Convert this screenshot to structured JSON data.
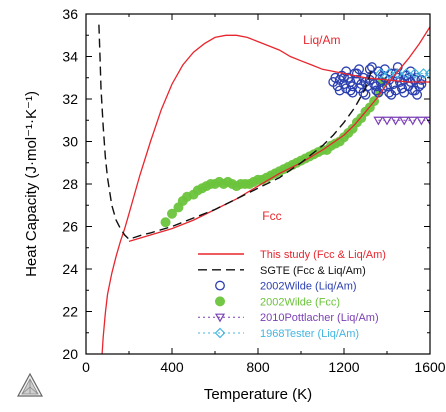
{
  "chart_data": {
    "type": "line",
    "title": "",
    "xlabel": "Temperature (K)",
    "ylabel": "Heat Capacity (J·mol⁻¹·K⁻¹)",
    "xlim": [
      0,
      1600
    ],
    "ylim": [
      20,
      36
    ],
    "xticks": [
      0,
      400,
      800,
      1200,
      1600
    ],
    "yticks": [
      20,
      22,
      24,
      26,
      28,
      30,
      32,
      34,
      36
    ],
    "grid": false,
    "legend_position": "bottom-right",
    "curve_labels": [
      {
        "text": "Liq/Am",
        "x": 1010,
        "y": 34.6,
        "color": "#e8262e"
      },
      {
        "text": "Fcc",
        "x": 820,
        "y": 26.3,
        "color": "#e8262e"
      }
    ],
    "series": [
      {
        "name": "This study (Fcc & Liq/Am)",
        "kind": "line",
        "style": "solid",
        "color": "#e8262e",
        "x": [
          75,
          80,
          90,
          100,
          120,
          140,
          160,
          180,
          200,
          250,
          300,
          350,
          400,
          450,
          500,
          550,
          600,
          650,
          700,
          750,
          800,
          850,
          900,
          950,
          1000,
          1050,
          1100,
          1150,
          1200,
          1300,
          1400,
          1500,
          1600
        ],
        "y": [
          20.0,
          20.8,
          21.9,
          22.8,
          23.8,
          24.6,
          25.3,
          25.9,
          26.6,
          28.4,
          30.0,
          31.5,
          32.7,
          33.6,
          34.2,
          34.6,
          34.9,
          35.0,
          35.0,
          34.9,
          34.7,
          34.5,
          34.3,
          34.0,
          33.8,
          33.6,
          33.4,
          33.3,
          33.2,
          33.0,
          32.9,
          32.8,
          32.8
        ]
      },
      {
        "name": "This study (Fcc & Liq/Am)",
        "kind": "line",
        "style": "solid",
        "color": "#e8262e",
        "show_in_legend": false,
        "x": [
          200,
          300,
          400,
          500,
          600,
          700,
          800,
          900,
          1000,
          1100,
          1200,
          1250,
          1300,
          1350,
          1400,
          1450,
          1500,
          1550,
          1600
        ],
        "y": [
          25.3,
          25.6,
          25.9,
          26.3,
          26.8,
          27.3,
          27.9,
          28.5,
          29.0,
          29.6,
          30.3,
          30.8,
          31.4,
          32.0,
          32.7,
          33.3,
          33.9,
          34.6,
          35.4
        ]
      },
      {
        "name": "SGTE (Fcc & Liq/Am)",
        "kind": "line",
        "style": "dashed",
        "color": "#111111",
        "x": [
          60,
          65,
          70,
          80,
          90,
          100,
          120,
          140,
          160,
          180,
          200,
          230,
          260,
          300,
          400,
          500,
          600,
          700,
          800,
          900,
          1000,
          1100,
          1150,
          1200,
          1250,
          1300,
          1330
        ],
        "y": [
          35.5,
          34.0,
          32.5,
          30.7,
          29.3,
          28.3,
          27.0,
          26.3,
          25.9,
          25.6,
          25.4,
          25.5,
          25.6,
          25.7,
          26.0,
          26.4,
          26.8,
          27.3,
          27.8,
          28.3,
          29.0,
          29.8,
          30.3,
          30.9,
          31.6,
          32.5,
          33.4
        ]
      },
      {
        "name": "2002Wilde (Liq/Am)",
        "kind": "scatter",
        "marker": "circle-open",
        "color": "#2b3fb0",
        "x": [
          1150,
          1160,
          1170,
          1180,
          1190,
          1200,
          1210,
          1220,
          1230,
          1240,
          1250,
          1260,
          1270,
          1280,
          1290,
          1300,
          1310,
          1320,
          1330,
          1340,
          1350,
          1360,
          1370,
          1380,
          1390,
          1400,
          1410,
          1420,
          1430,
          1440,
          1450,
          1460,
          1470,
          1480,
          1490,
          1500,
          1510,
          1520,
          1530,
          1540,
          1550,
          1560,
          1180,
          1210,
          1240,
          1270,
          1300,
          1330,
          1360,
          1390,
          1420,
          1450,
          1480,
          1510,
          1540,
          1200,
          1230,
          1260,
          1290,
          1320,
          1350,
          1380,
          1410,
          1440,
          1470,
          1500,
          1530,
          1560
        ],
        "y": [
          32.8,
          33.0,
          32.6,
          32.9,
          33.1,
          32.7,
          32.5,
          33.0,
          32.8,
          32.6,
          33.2,
          32.9,
          32.5,
          32.7,
          33.0,
          32.8,
          32.6,
          32.9,
          33.1,
          32.7,
          32.4,
          33.3,
          32.8,
          32.5,
          33.0,
          32.6,
          32.9,
          33.2,
          32.7,
          32.4,
          33.0,
          32.8,
          32.5,
          32.9,
          33.1,
          32.6,
          32.8,
          32.4,
          32.9,
          33.0,
          32.6,
          32.7,
          32.4,
          33.3,
          32.3,
          33.4,
          32.2,
          33.5,
          32.3,
          33.4,
          32.2,
          33.5,
          32.3,
          33.3,
          32.2,
          33.0,
          32.4,
          33.2,
          32.3,
          33.4,
          32.6,
          33.1,
          32.3,
          33.2,
          32.5,
          33.0,
          32.4,
          32.9
        ]
      },
      {
        "name": "2002Wilde (Fcc)",
        "kind": "scatter",
        "marker": "circle-filled",
        "color": "#6cc43c",
        "x": [
          370,
          400,
          430,
          450,
          470,
          500,
          520,
          540,
          560,
          580,
          600,
          620,
          640,
          660,
          680,
          700,
          720,
          740,
          760,
          780,
          800,
          820,
          840,
          860,
          880,
          900,
          920,
          940,
          960,
          980,
          1000,
          1020,
          1040,
          1060,
          1080,
          1100,
          1120,
          1140,
          1160,
          1180,
          1200,
          1220,
          1240,
          1260,
          1280,
          1300,
          1320,
          1340,
          1360,
          1380
        ],
        "y": [
          26.2,
          26.6,
          26.9,
          27.2,
          27.4,
          27.5,
          27.7,
          27.8,
          27.9,
          28.0,
          28.0,
          28.1,
          28.0,
          28.1,
          28.0,
          27.9,
          28.0,
          28.0,
          28.0,
          28.1,
          28.2,
          28.2,
          28.3,
          28.4,
          28.5,
          28.6,
          28.7,
          28.8,
          28.9,
          29.0,
          29.1,
          29.2,
          29.3,
          29.4,
          29.5,
          29.6,
          29.6,
          29.8,
          29.9,
          30.0,
          30.2,
          30.4,
          30.6,
          30.9,
          31.1,
          31.4,
          31.6,
          31.9,
          32.3,
          32.8
        ]
      },
      {
        "name": "2010Pottlacher (Liq/Am)",
        "kind": "scatter",
        "marker": "triangle-down-open",
        "line_style": "dotted",
        "color": "#7b3fb5",
        "x": [
          1360,
          1400,
          1440,
          1480,
          1520,
          1560,
          1600
        ],
        "y": [
          31.0,
          31.0,
          31.0,
          31.0,
          31.0,
          31.0,
          31.0
        ]
      },
      {
        "name": "1968Tester (Liq/Am)",
        "kind": "scatter",
        "marker": "diamond-open",
        "line_style": "dotted",
        "color": "#44b6e0",
        "x": [
          1370,
          1410,
          1450,
          1490,
          1530,
          1570,
          1600
        ],
        "y": [
          33.2,
          33.2,
          33.2,
          33.2,
          33.2,
          33.2,
          33.2
        ]
      }
    ]
  }
}
